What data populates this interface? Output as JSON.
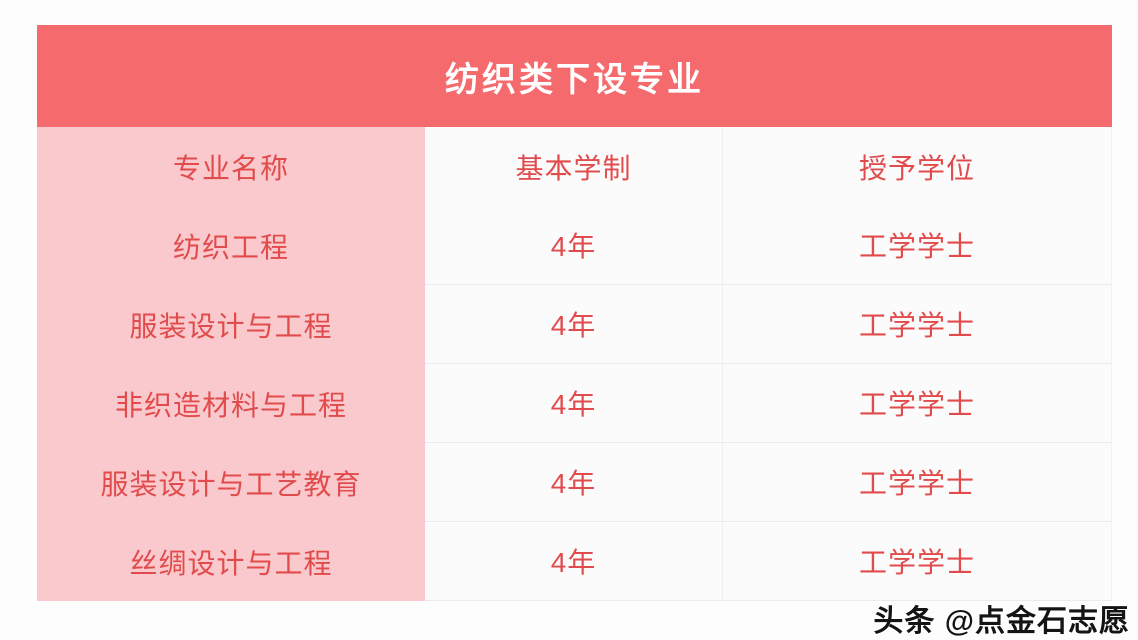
{
  "chart_data": {
    "type": "table",
    "title": "纺织类下设专业",
    "columns": [
      "专业名称",
      "基本学制",
      "授予学位"
    ],
    "rows": [
      [
        "纺织工程",
        "4年",
        "工学学士"
      ],
      [
        "服装设计与工程",
        "4年",
        "工学学士"
      ],
      [
        "非织造材料与工程",
        "4年",
        "工学学士"
      ],
      [
        "服装设计与工艺教育",
        "4年",
        "工学学士"
      ],
      [
        "丝绸设计与工程",
        "4年",
        "工学学士"
      ]
    ],
    "layout_hints": {
      "title_position": "top-banner",
      "first_column_highlighted": true,
      "grid": "light horizontal dividers in value columns only"
    }
  },
  "colors": {
    "title_bg": "#f56a6c",
    "title_text": "#ffffff",
    "first_column_bg": "#fac9cd",
    "cell_bg": "#fcfbfc",
    "cell_text": "#e14b4b",
    "border": "#ebebee",
    "page_bg": "#fdfdfe",
    "watermark_text": "#141414"
  },
  "watermark": {
    "text": "头条 @点金石志愿"
  }
}
